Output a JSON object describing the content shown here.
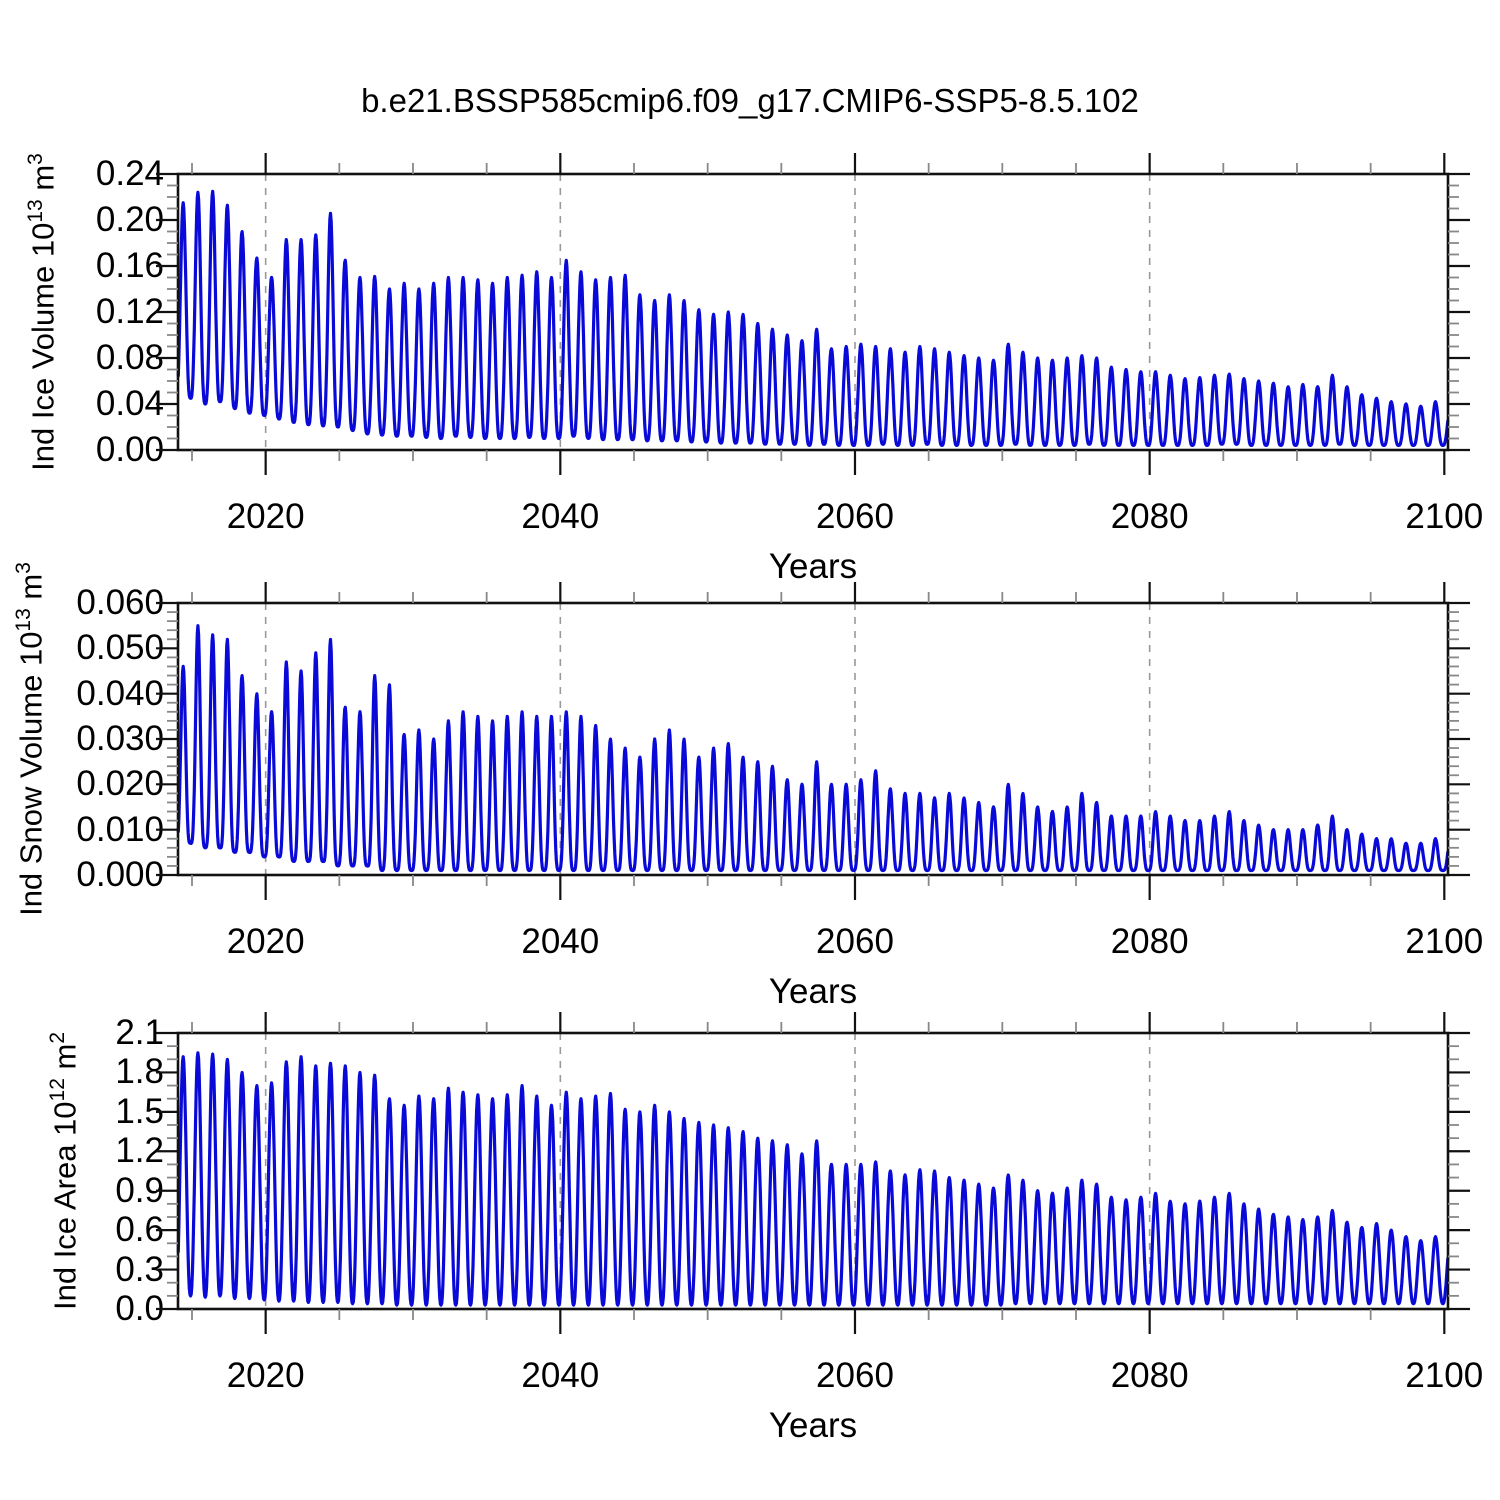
{
  "title": "b.e21.BSSP585cmip6.f09_g17.CMIP6-SSP5-8.5.102",
  "styles": {
    "line_color": "#0a0ad8",
    "frame_color": "#111111",
    "gridline_color": "#999999",
    "minor_tick_color": "#888888",
    "background": "#ffffff"
  },
  "chart_data": [
    {
      "type": "line",
      "id": "ice-volume",
      "ylabel_text": "Ind Ice Volume 10^13 m^3",
      "ylabel_rich": [
        {
          "t": "Ind Ice Volume 10"
        },
        {
          "t": "13",
          "sup": true
        },
        {
          "t": " m"
        },
        {
          "t": "3",
          "sup": true
        }
      ],
      "xlabel": "Years",
      "ylim": [
        0.0,
        0.24
      ],
      "yticks": {
        "values": [
          0.0,
          0.04,
          0.08,
          0.12,
          0.16,
          0.2,
          0.24
        ],
        "labels": [
          "0.00",
          "0.04",
          "0.08",
          "0.12",
          "0.16",
          "0.20",
          "0.24"
        ]
      },
      "minor_y_step": 0.01,
      "x_range": [
        2014.05,
        2100.25
      ],
      "xticks": {
        "values": [
          2020,
          2040,
          2060,
          2080,
          2100
        ],
        "labels": [
          "2020",
          "2040",
          "2060",
          "2080",
          "2100"
        ]
      },
      "minor_x_step": 5,
      "gridline_years": [
        2020,
        2040,
        2060,
        2080
      ],
      "grid": "vertical-dashed",
      "legend": "none",
      "seasonality": {
        "resolution": "monthly",
        "peak_phase": 0.4,
        "peak_sharpness": 1.6
      },
      "years_start": 2014,
      "annual_max": [
        0.215,
        0.224,
        0.225,
        0.213,
        0.19,
        0.167,
        0.15,
        0.183,
        0.183,
        0.187,
        0.206,
        0.165,
        0.15,
        0.151,
        0.14,
        0.145,
        0.14,
        0.145,
        0.15,
        0.15,
        0.148,
        0.145,
        0.15,
        0.152,
        0.155,
        0.15,
        0.165,
        0.155,
        0.148,
        0.15,
        0.152,
        0.135,
        0.13,
        0.135,
        0.13,
        0.122,
        0.118,
        0.12,
        0.118,
        0.11,
        0.105,
        0.1,
        0.095,
        0.105,
        0.088,
        0.09,
        0.092,
        0.09,
        0.088,
        0.085,
        0.09,
        0.088,
        0.085,
        0.082,
        0.08,
        0.078,
        0.092,
        0.085,
        0.08,
        0.078,
        0.08,
        0.082,
        0.08,
        0.072,
        0.07,
        0.068,
        0.068,
        0.065,
        0.062,
        0.063,
        0.065,
        0.066,
        0.062,
        0.06,
        0.058,
        0.055,
        0.057,
        0.055,
        0.065,
        0.055,
        0.048,
        0.045,
        0.042,
        0.04,
        0.038,
        0.042,
        0.036
      ],
      "annual_min": [
        0.045,
        0.04,
        0.042,
        0.036,
        0.032,
        0.03,
        0.027,
        0.024,
        0.022,
        0.021,
        0.02,
        0.017,
        0.014,
        0.013,
        0.012,
        0.012,
        0.011,
        0.01,
        0.012,
        0.011,
        0.01,
        0.01,
        0.01,
        0.011,
        0.01,
        0.01,
        0.012,
        0.01,
        0.009,
        0.009,
        0.009,
        0.008,
        0.008,
        0.008,
        0.007,
        0.007,
        0.006,
        0.006,
        0.006,
        0.005,
        0.005,
        0.005,
        0.004,
        0.005,
        0.004,
        0.004,
        0.004,
        0.005,
        0.004,
        0.004,
        0.005,
        0.004,
        0.004,
        0.004,
        0.004,
        0.004,
        0.005,
        0.004,
        0.004,
        0.004,
        0.004,
        0.005,
        0.004,
        0.004,
        0.004,
        0.004,
        0.004,
        0.004,
        0.004,
        0.004,
        0.005,
        0.005,
        0.004,
        0.004,
        0.004,
        0.004,
        0.004,
        0.004,
        0.005,
        0.004,
        0.004,
        0.004,
        0.004,
        0.004,
        0.004,
        0.004,
        0.004
      ]
    },
    {
      "type": "line",
      "id": "snow-volume",
      "ylabel_text": "Ind Snow Volume 10^13 m^3",
      "ylabel_rich": [
        {
          "t": "Ind Snow Volume 10"
        },
        {
          "t": "13",
          "sup": true
        },
        {
          "t": " m"
        },
        {
          "t": "3",
          "sup": true
        }
      ],
      "xlabel": "Years",
      "ylim": [
        0.0,
        0.06
      ],
      "yticks": {
        "values": [
          0.0,
          0.01,
          0.02,
          0.03,
          0.04,
          0.05,
          0.06
        ],
        "labels": [
          "0.000",
          "0.010",
          "0.020",
          "0.030",
          "0.040",
          "0.050",
          "0.060"
        ]
      },
      "minor_y_step": 0.002,
      "x_range": [
        2014.05,
        2100.25
      ],
      "xticks": {
        "values": [
          2020,
          2040,
          2060,
          2080,
          2100
        ],
        "labels": [
          "2020",
          "2040",
          "2060",
          "2080",
          "2100"
        ]
      },
      "minor_x_step": 5,
      "gridline_years": [
        2020,
        2040,
        2060,
        2080
      ],
      "grid": "vertical-dashed",
      "legend": "none",
      "seasonality": {
        "resolution": "monthly",
        "peak_phase": 0.4,
        "peak_sharpness": 2.0
      },
      "years_start": 2014,
      "annual_max": [
        0.046,
        0.055,
        0.053,
        0.052,
        0.044,
        0.04,
        0.036,
        0.047,
        0.045,
        0.049,
        0.052,
        0.037,
        0.036,
        0.044,
        0.042,
        0.031,
        0.032,
        0.03,
        0.034,
        0.036,
        0.035,
        0.034,
        0.035,
        0.036,
        0.035,
        0.035,
        0.036,
        0.035,
        0.033,
        0.03,
        0.028,
        0.026,
        0.03,
        0.032,
        0.03,
        0.026,
        0.028,
        0.029,
        0.026,
        0.025,
        0.024,
        0.021,
        0.02,
        0.025,
        0.02,
        0.02,
        0.021,
        0.023,
        0.019,
        0.018,
        0.018,
        0.017,
        0.018,
        0.017,
        0.016,
        0.015,
        0.02,
        0.018,
        0.015,
        0.014,
        0.015,
        0.018,
        0.016,
        0.013,
        0.013,
        0.013,
        0.014,
        0.013,
        0.012,
        0.012,
        0.013,
        0.014,
        0.012,
        0.011,
        0.01,
        0.01,
        0.01,
        0.011,
        0.013,
        0.01,
        0.009,
        0.008,
        0.008,
        0.007,
        0.007,
        0.008,
        0.008
      ],
      "annual_min": [
        0.007,
        0.006,
        0.006,
        0.005,
        0.005,
        0.004,
        0.004,
        0.003,
        0.003,
        0.003,
        0.002,
        0.002,
        0.002,
        0.001,
        0.001,
        0.001,
        0.001,
        0.001,
        0.001,
        0.001,
        0.001,
        0.001,
        0.001,
        0.001,
        0.001,
        0.001,
        0.001,
        0.001,
        0.001,
        0.001,
        0.001,
        0.001,
        0.001,
        0.001,
        0.001,
        0.001,
        0.001,
        0.001,
        0.001,
        0.001,
        0.001,
        0.001,
        0.001,
        0.001,
        0.001,
        0.001,
        0.001,
        0.001,
        0.001,
        0.001,
        0.001,
        0.001,
        0.001,
        0.001,
        0.001,
        0.001,
        0.001,
        0.001,
        0.001,
        0.001,
        0.001,
        0.001,
        0.001,
        0.001,
        0.001,
        0.001,
        0.001,
        0.001,
        0.001,
        0.001,
        0.001,
        0.001,
        0.001,
        0.001,
        0.001,
        0.001,
        0.001,
        0.001,
        0.001,
        0.001,
        0.001,
        0.001,
        0.001,
        0.001,
        0.001,
        0.001,
        0.001
      ]
    },
    {
      "type": "line",
      "id": "ice-area",
      "ylabel_text": "Ind Ice Area 10^12 m^2",
      "ylabel_rich": [
        {
          "t": "Ind Ice Area 10"
        },
        {
          "t": "12",
          "sup": true
        },
        {
          "t": " m"
        },
        {
          "t": "2",
          "sup": true
        }
      ],
      "xlabel": "Years",
      "ylim": [
        0.0,
        2.1
      ],
      "yticks": {
        "values": [
          0.0,
          0.3,
          0.6,
          0.9,
          1.2,
          1.5,
          1.8,
          2.1
        ],
        "labels": [
          "0.0",
          "0.3",
          "0.6",
          "0.9",
          "1.2",
          "1.5",
          "1.8",
          "2.1"
        ]
      },
      "minor_y_step": 0.1,
      "x_range": [
        2014.05,
        2100.25
      ],
      "xticks": {
        "values": [
          2020,
          2040,
          2060,
          2080,
          2100
        ],
        "labels": [
          "2020",
          "2040",
          "2060",
          "2080",
          "2100"
        ]
      },
      "minor_x_step": 5,
      "gridline_years": [
        2020,
        2040,
        2060,
        2080
      ],
      "grid": "vertical-dashed",
      "legend": "none",
      "seasonality": {
        "resolution": "monthly",
        "peak_phase": 0.4,
        "peak_sharpness": 1.25
      },
      "years_start": 2014,
      "annual_max": [
        1.92,
        1.95,
        1.94,
        1.9,
        1.8,
        1.7,
        1.72,
        1.88,
        1.92,
        1.85,
        1.87,
        1.85,
        1.8,
        1.78,
        1.6,
        1.55,
        1.62,
        1.6,
        1.68,
        1.65,
        1.63,
        1.6,
        1.63,
        1.7,
        1.62,
        1.55,
        1.65,
        1.6,
        1.62,
        1.64,
        1.52,
        1.5,
        1.55,
        1.5,
        1.45,
        1.42,
        1.4,
        1.38,
        1.35,
        1.3,
        1.28,
        1.25,
        1.18,
        1.28,
        1.1,
        1.1,
        1.1,
        1.12,
        1.05,
        1.02,
        1.06,
        1.05,
        1.0,
        0.98,
        0.95,
        0.92,
        1.02,
        0.98,
        0.9,
        0.88,
        0.92,
        0.98,
        0.95,
        0.85,
        0.83,
        0.85,
        0.88,
        0.82,
        0.8,
        0.82,
        0.85,
        0.88,
        0.8,
        0.76,
        0.72,
        0.7,
        0.68,
        0.7,
        0.75,
        0.66,
        0.62,
        0.65,
        0.6,
        0.55,
        0.52,
        0.55,
        0.52
      ],
      "annual_min": [
        0.1,
        0.09,
        0.1,
        0.08,
        0.08,
        0.07,
        0.06,
        0.06,
        0.05,
        0.05,
        0.05,
        0.04,
        0.04,
        0.04,
        0.03,
        0.03,
        0.03,
        0.03,
        0.03,
        0.03,
        0.03,
        0.03,
        0.03,
        0.03,
        0.03,
        0.03,
        0.03,
        0.03,
        0.03,
        0.03,
        0.03,
        0.03,
        0.03,
        0.03,
        0.03,
        0.03,
        0.03,
        0.03,
        0.03,
        0.03,
        0.03,
        0.03,
        0.03,
        0.03,
        0.03,
        0.03,
        0.03,
        0.03,
        0.03,
        0.03,
        0.03,
        0.03,
        0.03,
        0.03,
        0.03,
        0.03,
        0.04,
        0.04,
        0.04,
        0.04,
        0.04,
        0.04,
        0.04,
        0.04,
        0.04,
        0.04,
        0.04,
        0.04,
        0.04,
        0.04,
        0.04,
        0.04,
        0.04,
        0.04,
        0.04,
        0.04,
        0.04,
        0.04,
        0.04,
        0.04,
        0.04,
        0.04,
        0.04,
        0.04,
        0.04,
        0.04,
        0.04
      ]
    }
  ]
}
